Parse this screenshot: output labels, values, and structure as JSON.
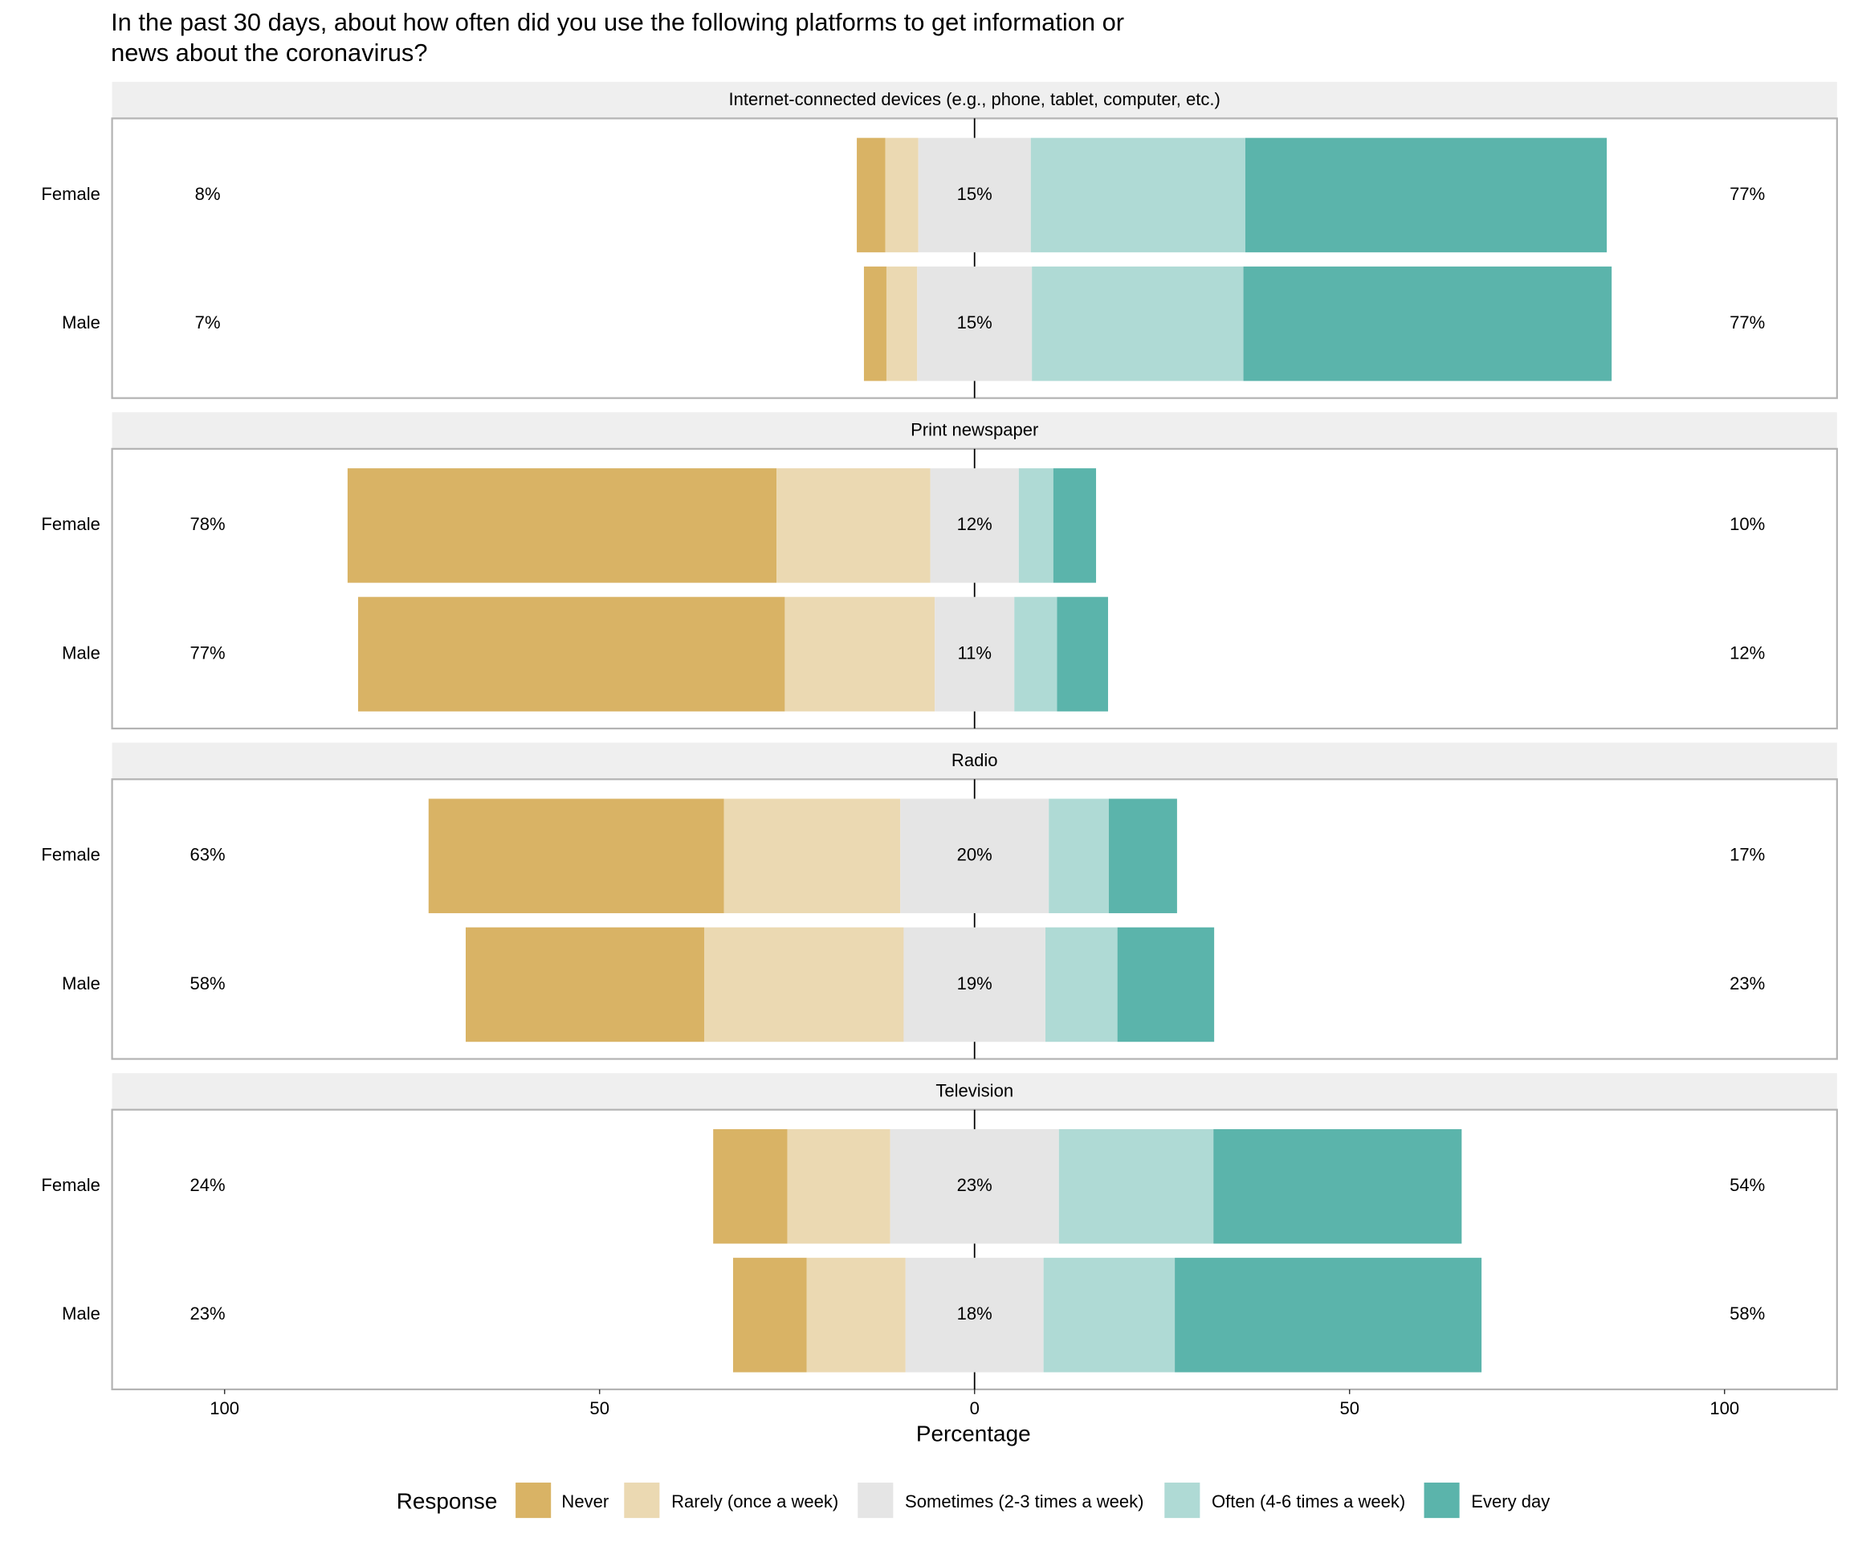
{
  "chart_data": {
    "type": "diverging_bar",
    "title": [
      "In the past 30 days, about how often did you use the following platforms to get information or",
      "news about the coronavirus?"
    ],
    "x_label": "Percentage",
    "xlim": [
      -115,
      115
    ],
    "xticks": [
      {
        "value": -100,
        "label": "100"
      },
      {
        "value": -50,
        "label": "50"
      },
      0,
      50,
      100
    ],
    "legend": {
      "title": "Response",
      "position": "bottom",
      "names": [
        "Never",
        "Rarely (once a week)",
        "Sometimes (2-3 times a week)",
        "Often (4-6 times a week)",
        "Every day"
      ],
      "colors": [
        "#d9b365",
        "#ebd9b2",
        "#e5e5e5",
        "#afdad5",
        "#5bb4ab"
      ]
    },
    "panels": [
      {
        "title": "Internet-connected devices (e.g., phone, tablet, computer, etc.)",
        "categories": [
          "Female",
          "Male"
        ],
        "series": [
          {
            "values": [
              3.8,
              3.0
            ]
          },
          {
            "values": [
              4.4,
              4.1
            ]
          },
          {
            "values": [
              15,
              15.3
            ],
            "value_labels": [
              "15%",
              "15%"
            ]
          },
          {
            "values": [
              28.6,
              28.2
            ]
          },
          {
            "values": [
              48.2,
              49.1
            ]
          }
        ],
        "low_labels": [
          "8%",
          "7%"
        ],
        "high_labels": [
          "77%",
          "77%"
        ]
      },
      {
        "title": "Print newspaper",
        "categories": [
          "Female",
          "Male"
        ],
        "series": [
          {
            "values": [
              57.2,
              56.9
            ]
          },
          {
            "values": [
              20.5,
              20.0
            ]
          },
          {
            "values": [
              11.8,
              10.6
            ],
            "value_labels": [
              "12%",
              "11%"
            ]
          },
          {
            "values": [
              4.6,
              5.7
            ]
          },
          {
            "values": [
              5.7,
              6.8
            ]
          }
        ],
        "low_labels": [
          "78%",
          "77%"
        ],
        "high_labels": [
          "10%",
          "12%"
        ]
      },
      {
        "title": "Radio",
        "categories": [
          "Female",
          "Male"
        ],
        "series": [
          {
            "values": [
              39.4,
              31.8
            ]
          },
          {
            "values": [
              23.5,
              26.6
            ]
          },
          {
            "values": [
              19.8,
              18.9
            ],
            "value_labels": [
              "20%",
              "19%"
            ]
          },
          {
            "values": [
              8.0,
              9.6
            ]
          },
          {
            "values": [
              9.1,
              12.9
            ]
          }
        ],
        "low_labels": [
          "63%",
          "58%"
        ],
        "high_labels": [
          "17%",
          "23%"
        ]
      },
      {
        "title": "Television",
        "categories": [
          "Female",
          "Male"
        ],
        "series": [
          {
            "values": [
              9.9,
              9.8
            ]
          },
          {
            "values": [
              13.7,
              13.2
            ]
          },
          {
            "values": [
              22.5,
              18.4
            ],
            "value_labels": [
              "23%",
              "18%"
            ]
          },
          {
            "values": [
              20.6,
              17.5
            ]
          },
          {
            "values": [
              33.1,
              40.9
            ]
          }
        ],
        "low_labels": [
          "24%",
          "23%"
        ],
        "high_labels": [
          "54%",
          "58%"
        ]
      }
    ]
  }
}
